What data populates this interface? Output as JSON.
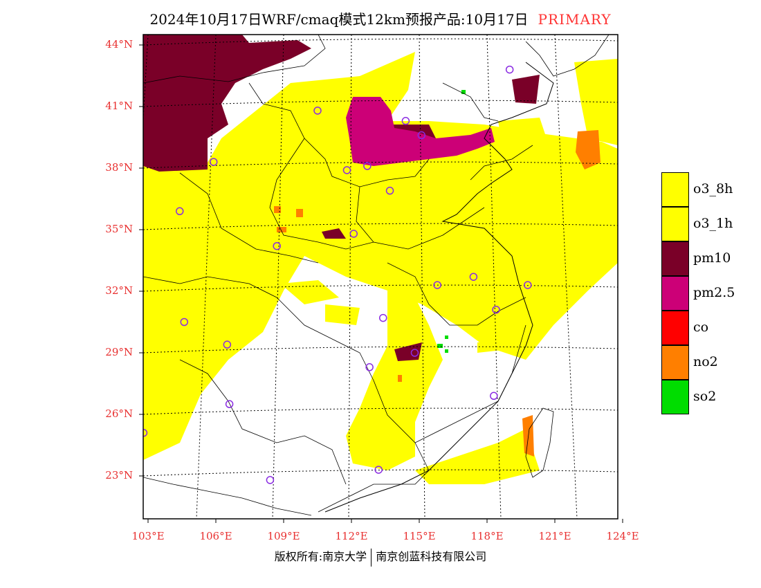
{
  "title": {
    "main": "2024年10月17日WRF/cmaq模式12km预报产品:10月17日",
    "tag": "PRIMARY"
  },
  "map": {
    "lon_range": [
      102.7,
      124
    ],
    "lat_range": [
      20.8,
      44.5
    ],
    "lat_labels": [
      "44°N",
      "41°N",
      "38°N",
      "35°N",
      "32°N",
      "29°N",
      "26°N",
      "23°N"
    ],
    "lat_values": [
      44,
      41,
      38,
      35,
      32,
      29,
      26,
      23
    ],
    "lon_labels": [
      "103°E",
      "106°E",
      "109°E",
      "112°E",
      "115°E",
      "118°E",
      "121°E",
      "124°E"
    ],
    "lon_values": [
      103,
      106,
      109,
      112,
      115,
      118,
      121,
      124
    ],
    "stations": [
      [
        110.5,
        40.8
      ],
      [
        105.9,
        38.3
      ],
      [
        111.8,
        37.9
      ],
      [
        104.4,
        35.9
      ],
      [
        113.7,
        36.9
      ],
      [
        112.1,
        34.8
      ],
      [
        108.7,
        34.2
      ],
      [
        114.4,
        40.3
      ],
      [
        115.1,
        39.6
      ],
      [
        119.0,
        42.8
      ],
      [
        117.4,
        32.7
      ],
      [
        115.8,
        32.3
      ],
      [
        119.8,
        32.3
      ],
      [
        118.4,
        31.1
      ],
      [
        104.6,
        30.5
      ],
      [
        106.5,
        29.4
      ],
      [
        113.4,
        30.7
      ],
      [
        114.8,
        29.0
      ],
      [
        112.8,
        28.3
      ],
      [
        106.6,
        26.5
      ],
      [
        102.8,
        25.1
      ],
      [
        118.3,
        26.9
      ],
      [
        108.4,
        22.8
      ],
      [
        113.2,
        23.3
      ],
      [
        112.7,
        38.1
      ]
    ]
  },
  "legend": [
    {
      "label": "o3_8h",
      "color": "#ffff00"
    },
    {
      "label": "o3_1h",
      "color": "#ffff00"
    },
    {
      "label": "pm10",
      "color": "#7a0028"
    },
    {
      "label": "pm2.5",
      "color": "#cc0077"
    },
    {
      "label": "co",
      "color": "#ff0000"
    },
    {
      "label": "no2",
      "color": "#ff7f00"
    },
    {
      "label": "so2",
      "color": "#00dd00"
    }
  ],
  "footer": {
    "left": "版权所有:南京大学",
    "right": "南京创蓝科技有限公司"
  }
}
